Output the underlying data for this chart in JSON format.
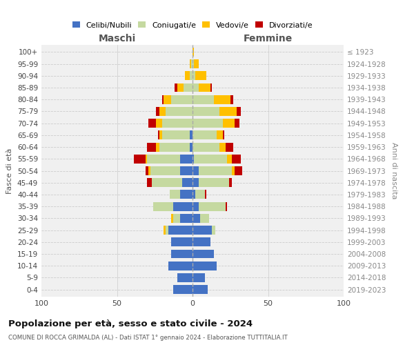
{
  "age_groups": [
    "100+",
    "95-99",
    "90-94",
    "85-89",
    "80-84",
    "75-79",
    "70-74",
    "65-69",
    "60-64",
    "55-59",
    "50-54",
    "45-49",
    "40-44",
    "35-39",
    "30-34",
    "25-29",
    "20-24",
    "15-19",
    "10-14",
    "5-9",
    "0-4"
  ],
  "birth_years": [
    "≤ 1923",
    "1924-1928",
    "1929-1933",
    "1934-1938",
    "1939-1943",
    "1944-1948",
    "1949-1953",
    "1954-1958",
    "1959-1963",
    "1964-1968",
    "1969-1973",
    "1974-1978",
    "1979-1983",
    "1984-1988",
    "1989-1993",
    "1994-1998",
    "1999-2003",
    "2004-2008",
    "2009-2013",
    "2014-2018",
    "2019-2023"
  ],
  "colors": {
    "celibi": "#4472c4",
    "coniugati": "#c5d9a0",
    "vedovi": "#ffc000",
    "divorziati": "#c00000"
  },
  "maschi": {
    "celibi": [
      0,
      0,
      0,
      0,
      0,
      0,
      0,
      2,
      2,
      8,
      8,
      7,
      8,
      13,
      8,
      16,
      14,
      14,
      16,
      10,
      13
    ],
    "coniugati": [
      0,
      1,
      2,
      6,
      14,
      18,
      20,
      18,
      20,
      22,
      20,
      20,
      7,
      13,
      5,
      2,
      0,
      0,
      0,
      0,
      0
    ],
    "vedovi": [
      0,
      1,
      3,
      4,
      5,
      4,
      4,
      2,
      2,
      1,
      1,
      0,
      0,
      0,
      1,
      1,
      0,
      0,
      0,
      0,
      0
    ],
    "divorziati": [
      0,
      0,
      0,
      2,
      1,
      2,
      5,
      1,
      6,
      8,
      2,
      3,
      0,
      0,
      0,
      0,
      0,
      0,
      0,
      0,
      0
    ]
  },
  "femmine": {
    "celibi": [
      0,
      0,
      0,
      0,
      0,
      0,
      0,
      0,
      0,
      1,
      4,
      4,
      2,
      4,
      5,
      13,
      12,
      14,
      16,
      8,
      10
    ],
    "coniugati": [
      0,
      1,
      2,
      4,
      14,
      18,
      20,
      16,
      18,
      22,
      22,
      20,
      6,
      18,
      6,
      2,
      0,
      0,
      0,
      0,
      0
    ],
    "vedovi": [
      1,
      3,
      7,
      8,
      11,
      11,
      8,
      4,
      4,
      3,
      2,
      0,
      0,
      0,
      0,
      0,
      0,
      0,
      0,
      0,
      0
    ],
    "divorziati": [
      0,
      0,
      0,
      1,
      2,
      3,
      3,
      1,
      5,
      6,
      5,
      2,
      1,
      1,
      0,
      0,
      0,
      0,
      0,
      0,
      0
    ]
  },
  "title": "Popolazione per età, sesso e stato civile - 2024",
  "subtitle": "COMUNE DI ROCCA GRIMALDA (AL) - Dati ISTAT 1° gennaio 2024 - Elaborazione TUTTITALIA.IT",
  "xlabel_left": "Maschi",
  "xlabel_right": "Femmine",
  "ylabel_left": "Fasce di età",
  "ylabel_right": "Anni di nascita",
  "xlim": 100,
  "legend_labels": [
    "Celibi/Nubili",
    "Coniugati/e",
    "Vedovi/e",
    "Divorziati/e"
  ],
  "bg_color": "#f0f0f0"
}
